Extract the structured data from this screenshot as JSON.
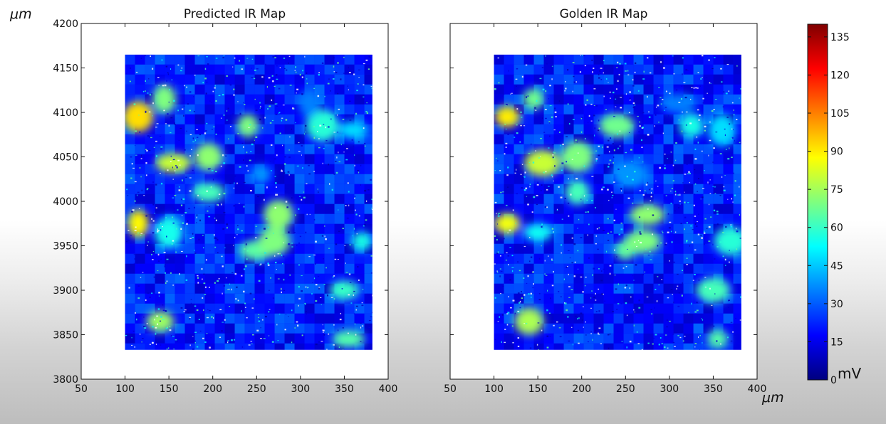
{
  "unit_label": "μm",
  "chart_data": [
    {
      "type": "heatmap",
      "title": "Predicted IR Map",
      "xlabel": "",
      "ylabel": "μm",
      "xlim": [
        50,
        400
      ],
      "ylim": [
        3800,
        4200
      ],
      "xticks": [
        50,
        100,
        150,
        200,
        250,
        300,
        350,
        400
      ],
      "yticks": [
        3800,
        3850,
        3900,
        3950,
        4000,
        4050,
        4100,
        4150,
        4200
      ],
      "data_extent": {
        "x": [
          100,
          382
        ],
        "y": [
          3833,
          4165
        ]
      },
      "value_unit": "mV",
      "hotspots": [
        {
          "x": 115,
          "y": 4095,
          "value": 92
        },
        {
          "x": 145,
          "y": 4115,
          "value": 70
        },
        {
          "x": 155,
          "y": 4043,
          "value": 80
        },
        {
          "x": 195,
          "y": 4050,
          "value": 72
        },
        {
          "x": 115,
          "y": 3975,
          "value": 88
        },
        {
          "x": 150,
          "y": 3965,
          "value": 55
        },
        {
          "x": 195,
          "y": 4010,
          "value": 62
        },
        {
          "x": 240,
          "y": 4085,
          "value": 70
        },
        {
          "x": 250,
          "y": 3945,
          "value": 65
        },
        {
          "x": 275,
          "y": 3985,
          "value": 72
        },
        {
          "x": 270,
          "y": 3955,
          "value": 70
        },
        {
          "x": 325,
          "y": 4085,
          "value": 58
        },
        {
          "x": 360,
          "y": 4080,
          "value": 48
        },
        {
          "x": 350,
          "y": 3900,
          "value": 60
        },
        {
          "x": 370,
          "y": 3955,
          "value": 56
        },
        {
          "x": 140,
          "y": 3865,
          "value": 74
        },
        {
          "x": 355,
          "y": 3845,
          "value": 64
        },
        {
          "x": 255,
          "y": 4030,
          "value": 38
        },
        {
          "x": 310,
          "y": 4110,
          "value": 35
        }
      ]
    },
    {
      "type": "heatmap",
      "title": "Golden IR Map",
      "xlabel": "μm",
      "ylabel": "",
      "xlim": [
        50,
        400
      ],
      "ylim": [
        3800,
        4200
      ],
      "xticks": [
        50,
        100,
        150,
        200,
        250,
        300,
        350,
        400
      ],
      "yticks": [
        3800,
        3850,
        3900,
        3950,
        4000,
        4050,
        4100,
        4150,
        4200
      ],
      "data_extent": {
        "x": [
          100,
          382
        ],
        "y": [
          3833,
          4165
        ]
      },
      "value_unit": "mV",
      "hotspots": [
        {
          "x": 115,
          "y": 4095,
          "value": 90
        },
        {
          "x": 145,
          "y": 4115,
          "value": 68
        },
        {
          "x": 155,
          "y": 4043,
          "value": 80
        },
        {
          "x": 195,
          "y": 4050,
          "value": 70
        },
        {
          "x": 115,
          "y": 3975,
          "value": 86
        },
        {
          "x": 150,
          "y": 3965,
          "value": 54
        },
        {
          "x": 195,
          "y": 4010,
          "value": 62
        },
        {
          "x": 240,
          "y": 4085,
          "value": 68
        },
        {
          "x": 250,
          "y": 3945,
          "value": 66
        },
        {
          "x": 275,
          "y": 3985,
          "value": 72
        },
        {
          "x": 270,
          "y": 3955,
          "value": 70
        },
        {
          "x": 325,
          "y": 4085,
          "value": 56
        },
        {
          "x": 360,
          "y": 4080,
          "value": 48
        },
        {
          "x": 350,
          "y": 3900,
          "value": 62
        },
        {
          "x": 370,
          "y": 3955,
          "value": 58
        },
        {
          "x": 140,
          "y": 3865,
          "value": 76
        },
        {
          "x": 355,
          "y": 3845,
          "value": 64
        },
        {
          "x": 255,
          "y": 4030,
          "value": 38
        },
        {
          "x": 310,
          "y": 4110,
          "value": 35
        }
      ]
    }
  ],
  "colorbar": {
    "min": 0,
    "max": 140,
    "ticks": [
      0,
      15,
      30,
      45,
      60,
      75,
      90,
      105,
      120,
      135
    ],
    "unit": "mV",
    "colormap": "jet",
    "colors": [
      "#00007f",
      "#0000ff",
      "#007fff",
      "#00ffff",
      "#7fff7f",
      "#ffff00",
      "#ff7f00",
      "#ff0000",
      "#7f0000"
    ]
  }
}
